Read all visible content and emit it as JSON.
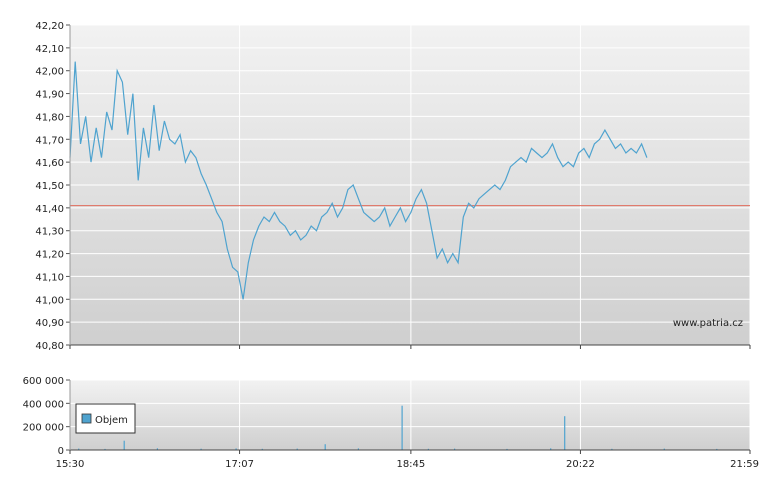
{
  "watermark": "www.patria.cz",
  "colors": {
    "price_line": "#4fa3cf",
    "reference_line": "#e06b5b",
    "grid": "#ffffff",
    "plot_bg_top": "#f2f2f2",
    "plot_bg_bottom": "#cfcfcf",
    "volume_bar": "#4fa3cf"
  },
  "chart_data": [
    {
      "type": "line",
      "title": "",
      "xlabel": "",
      "ylabel": "",
      "ylim": [
        40.8,
        42.2
      ],
      "y_ticks": [
        "42,20",
        "42,10",
        "42,00",
        "41,90",
        "41,80",
        "41,70",
        "41,60",
        "41,50",
        "41,40",
        "41,30",
        "41,20",
        "41,10",
        "41,00",
        "40,90",
        "40,80"
      ],
      "x_ticks": [
        "15:30",
        "17:07",
        "18:45",
        "20:22",
        "21:59"
      ],
      "reference_value": 41.41,
      "series": [
        {
          "points": [
            [
              "15:30",
              41.62
            ],
            [
              "15:33",
              42.04
            ],
            [
              "15:36",
              41.68
            ],
            [
              "15:39",
              41.8
            ],
            [
              "15:42",
              41.6
            ],
            [
              "15:45",
              41.75
            ],
            [
              "15:48",
              41.62
            ],
            [
              "15:51",
              41.82
            ],
            [
              "15:54",
              41.74
            ],
            [
              "15:57",
              42.0
            ],
            [
              "16:00",
              41.95
            ],
            [
              "16:03",
              41.72
            ],
            [
              "16:06",
              41.9
            ],
            [
              "16:09",
              41.52
            ],
            [
              "16:12",
              41.75
            ],
            [
              "16:15",
              41.62
            ],
            [
              "16:18",
              41.85
            ],
            [
              "16:21",
              41.65
            ],
            [
              "16:24",
              41.78
            ],
            [
              "16:27",
              41.7
            ],
            [
              "16:30",
              41.68
            ],
            [
              "16:33",
              41.72
            ],
            [
              "16:36",
              41.6
            ],
            [
              "16:39",
              41.65
            ],
            [
              "16:42",
              41.62
            ],
            [
              "16:45",
              41.55
            ],
            [
              "16:48",
              41.5
            ],
            [
              "16:51",
              41.44
            ],
            [
              "16:54",
              41.38
            ],
            [
              "16:57",
              41.34
            ],
            [
              "17:00",
              41.22
            ],
            [
              "17:03",
              41.14
            ],
            [
              "17:06",
              41.12
            ],
            [
              "17:09",
              41.0
            ],
            [
              "17:12",
              41.16
            ],
            [
              "17:15",
              41.26
            ],
            [
              "17:18",
              41.32
            ],
            [
              "17:21",
              41.36
            ],
            [
              "17:24",
              41.34
            ],
            [
              "17:27",
              41.38
            ],
            [
              "17:30",
              41.34
            ],
            [
              "17:33",
              41.32
            ],
            [
              "17:36",
              41.28
            ],
            [
              "17:39",
              41.3
            ],
            [
              "17:42",
              41.26
            ],
            [
              "17:45",
              41.28
            ],
            [
              "17:48",
              41.32
            ],
            [
              "17:51",
              41.3
            ],
            [
              "17:54",
              41.36
            ],
            [
              "17:57",
              41.38
            ],
            [
              "18:00",
              41.42
            ],
            [
              "18:03",
              41.36
            ],
            [
              "18:06",
              41.4
            ],
            [
              "18:09",
              41.48
            ],
            [
              "18:12",
              41.5
            ],
            [
              "18:15",
              41.44
            ],
            [
              "18:18",
              41.38
            ],
            [
              "18:21",
              41.36
            ],
            [
              "18:24",
              41.34
            ],
            [
              "18:27",
              41.36
            ],
            [
              "18:30",
              41.4
            ],
            [
              "18:33",
              41.32
            ],
            [
              "18:36",
              41.36
            ],
            [
              "18:39",
              41.4
            ],
            [
              "18:42",
              41.34
            ],
            [
              "18:45",
              41.38
            ],
            [
              "18:48",
              41.44
            ],
            [
              "18:51",
              41.48
            ],
            [
              "18:54",
              41.42
            ],
            [
              "18:57",
              41.3
            ],
            [
              "19:00",
              41.18
            ],
            [
              "19:03",
              41.22
            ],
            [
              "19:06",
              41.16
            ],
            [
              "19:09",
              41.2
            ],
            [
              "19:12",
              41.16
            ],
            [
              "19:15",
              41.36
            ],
            [
              "19:18",
              41.42
            ],
            [
              "19:21",
              41.4
            ],
            [
              "19:24",
              41.44
            ],
            [
              "19:27",
              41.46
            ],
            [
              "19:30",
              41.48
            ],
            [
              "19:33",
              41.5
            ],
            [
              "19:36",
              41.48
            ],
            [
              "19:39",
              41.52
            ],
            [
              "19:42",
              41.58
            ],
            [
              "19:45",
              41.6
            ],
            [
              "19:48",
              41.62
            ],
            [
              "19:51",
              41.6
            ],
            [
              "19:54",
              41.66
            ],
            [
              "19:57",
              41.64
            ],
            [
              "20:00",
              41.62
            ],
            [
              "20:03",
              41.64
            ],
            [
              "20:06",
              41.68
            ],
            [
              "20:09",
              41.62
            ],
            [
              "20:12",
              41.58
            ],
            [
              "20:15",
              41.6
            ],
            [
              "20:18",
              41.58
            ],
            [
              "20:21",
              41.64
            ],
            [
              "20:24",
              41.66
            ],
            [
              "20:27",
              41.62
            ],
            [
              "20:30",
              41.68
            ],
            [
              "20:33",
              41.7
            ],
            [
              "20:36",
              41.74
            ],
            [
              "20:39",
              41.7
            ],
            [
              "20:42",
              41.66
            ],
            [
              "20:45",
              41.68
            ],
            [
              "20:48",
              41.64
            ],
            [
              "20:51",
              41.66
            ],
            [
              "20:54",
              41.64
            ],
            [
              "20:57",
              41.68
            ],
            [
              "21:00",
              41.62
            ]
          ]
        }
      ]
    },
    {
      "type": "bar",
      "title": "",
      "xlabel": "",
      "ylabel": "",
      "ylim": [
        0,
        600000
      ],
      "y_ticks": [
        "600 000",
        "400 000",
        "200 000",
        "0"
      ],
      "x_ticks": [
        "15:30",
        "17:07",
        "18:45",
        "20:22",
        "21:59"
      ],
      "legend": {
        "label": "Objem",
        "placement": "top-left"
      },
      "series": [
        {
          "name": "Objem",
          "points": [
            [
              "15:35",
              12000
            ],
            [
              "15:50",
              9000
            ],
            [
              "16:01",
              80000
            ],
            [
              "16:20",
              15000
            ],
            [
              "16:45",
              11000
            ],
            [
              "17:05",
              14000
            ],
            [
              "17:20",
              10000
            ],
            [
              "17:40",
              12000
            ],
            [
              "17:56",
              50000
            ],
            [
              "18:15",
              14000
            ],
            [
              "18:40",
              380000
            ],
            [
              "18:55",
              10000
            ],
            [
              "19:10",
              12000
            ],
            [
              "19:40",
              9000
            ],
            [
              "20:05",
              15000
            ],
            [
              "20:13",
              290000
            ],
            [
              "20:40",
              10000
            ],
            [
              "21:10",
              12000
            ],
            [
              "21:40",
              9000
            ]
          ]
        }
      ]
    }
  ]
}
